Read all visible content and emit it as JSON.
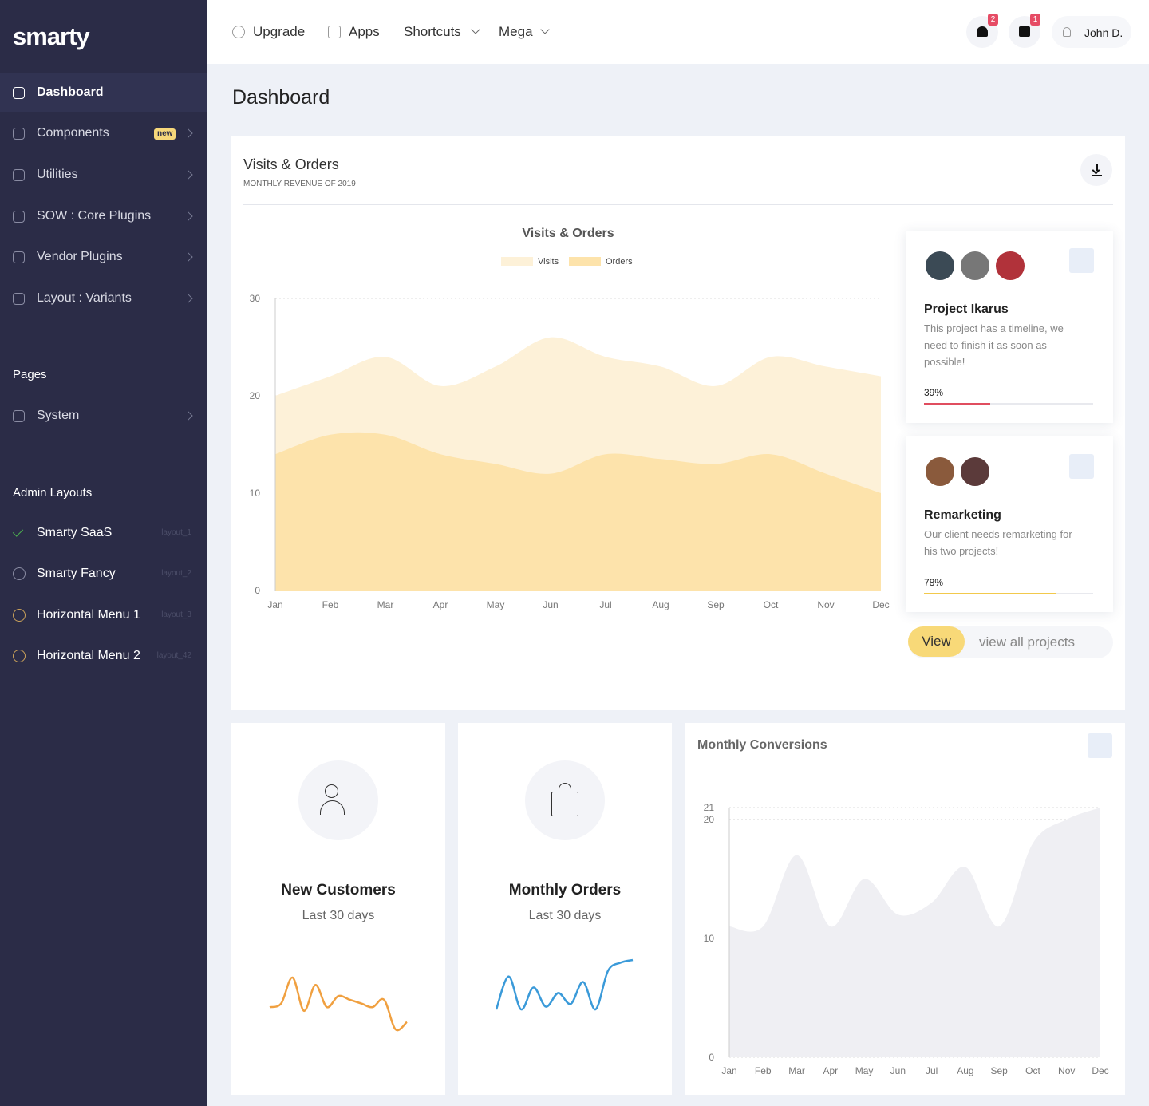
{
  "sidebar": {
    "logo": "smarty",
    "menu": [
      {
        "label": "Dashboard"
      },
      {
        "label": "Components",
        "badge": "new"
      },
      {
        "label": "Utilities"
      },
      {
        "label": "SOW : Core Plugins"
      },
      {
        "label": "Vendor Plugins"
      },
      {
        "label": "Layout : Variants"
      }
    ],
    "pages_heading": "Pages",
    "pages": [
      {
        "label": "System"
      }
    ],
    "admin_heading": "Admin Layouts",
    "layouts": [
      {
        "label": "Smarty SaaS",
        "tag": "layout_1"
      },
      {
        "label": "Smarty Fancy",
        "tag": "layout_2"
      },
      {
        "label": "Horizontal Menu 1",
        "tag": "layout_3"
      },
      {
        "label": "Horizontal Menu 2",
        "tag": "layout_42"
      }
    ]
  },
  "topbar": {
    "links": [
      "Upgrade",
      "Apps",
      "Shortcuts",
      "Mega"
    ],
    "notifications": 2,
    "messages": 1,
    "user": "John D."
  },
  "page_title": "Dashboard",
  "visits_card": {
    "title": "Visits & Orders",
    "subtitle": "MONTHLY REVENUE OF 2019"
  },
  "projects": [
    {
      "title": "Project Ikarus",
      "description": "This project has a timeline, we need to finish it as soon as possible!",
      "progress": 39,
      "progress_label": "39%",
      "color": "#e04d5f"
    },
    {
      "title": "Remarketing",
      "description": "Our client needs remarketing for his two projects!",
      "progress": 78,
      "progress_label": "78%",
      "color": "#f2c94c"
    }
  ],
  "projects_button": "View",
  "projects_link": "view all projects",
  "chart_data": [
    {
      "type": "area",
      "title": "Visits & Orders",
      "categories": [
        "Jan",
        "Feb",
        "Mar",
        "Apr",
        "May",
        "Jun",
        "Jul",
        "Aug",
        "Sep",
        "Oct",
        "Nov",
        "Dec"
      ],
      "series": [
        {
          "name": "Visits",
          "color": "#fdf1d8",
          "values": [
            20,
            22,
            24,
            21,
            23,
            26,
            24,
            23,
            21,
            24,
            23,
            22
          ]
        },
        {
          "name": "Orders",
          "color": "#fde3ab",
          "values": [
            14,
            16,
            16,
            14,
            13,
            12,
            14,
            13.5,
            13,
            14,
            12,
            10
          ]
        }
      ],
      "ylim": [
        0,
        30
      ],
      "yticks": [
        0,
        10,
        20,
        30
      ],
      "grid": true,
      "legend": "top"
    },
    {
      "type": "area",
      "title": "Monthly Conversions",
      "categories": [
        "Jan",
        "Feb",
        "Mar",
        "Apr",
        "May",
        "Jun",
        "Jul",
        "Aug",
        "Sep",
        "Oct",
        "Nov",
        "Dec"
      ],
      "values": [
        11,
        11,
        17,
        11,
        15,
        12,
        13,
        16,
        11,
        18,
        20,
        21
      ],
      "color": "#efeff3",
      "ylim": [
        0,
        21
      ],
      "yticks": [
        0,
        10,
        20,
        21
      ],
      "grid": true
    },
    {
      "type": "line",
      "title": "New Customers",
      "subtitle": "Last 30 days",
      "values": [
        4,
        4.5,
        8,
        3.5,
        7,
        4,
        5.5,
        5,
        4.5,
        4,
        5,
        1,
        2
      ],
      "color": "#f0a040"
    },
    {
      "type": "line",
      "title": "Monthly Orders",
      "subtitle": "Last 30 days",
      "values": [
        1,
        7,
        1,
        5,
        1.5,
        4,
        2,
        6,
        1,
        8,
        9.5,
        10
      ],
      "color": "#3a9ad9"
    }
  ]
}
